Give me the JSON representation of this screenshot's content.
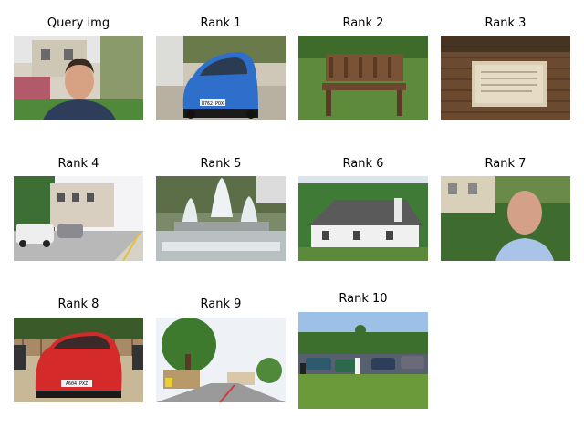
{
  "panels": [
    {
      "title": "Query img",
      "scene": "portrait of a man with dark hair in front of a house and garden"
    },
    {
      "title": "Rank 1",
      "scene": "blue hatchback car parked on gravel",
      "plate": "W762 POX"
    },
    {
      "title": "Rank 2",
      "scene": "wooden park bench on grass"
    },
    {
      "title": "Rank 3",
      "scene": "stone plaque on a brick wall"
    },
    {
      "title": "Rank 4",
      "scene": "residential street with parked cars"
    },
    {
      "title": "Rank 5",
      "scene": "tiered water fountain"
    },
    {
      "title": "Rank 6",
      "scene": "white cottage with grey roof among trees"
    },
    {
      "title": "Rank 7",
      "scene": "portrait of a bald man in a garden"
    },
    {
      "title": "Rank 8",
      "scene": "red hatchback car in front of a fence",
      "plate": "A604 PXZ"
    },
    {
      "title": "Rank 9",
      "scene": "town street with tree and buildings"
    },
    {
      "title": "Rank 10",
      "scene": "car park with people and trees"
    }
  ]
}
